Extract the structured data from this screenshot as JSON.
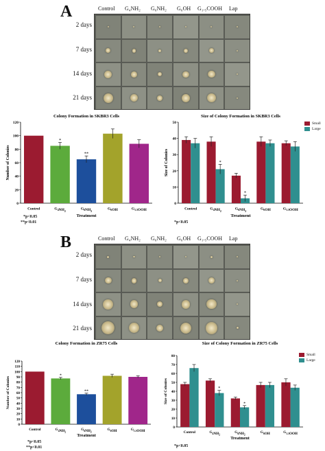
{
  "panels": [
    {
      "letter": "A",
      "columns": [
        "Control",
        "G₄NH₂",
        "G₆NH₂",
        "G₆OH",
        "G₁.₅COOH",
        "Lap"
      ],
      "rows": [
        "2 days",
        "7 days",
        "14 days",
        "21 days"
      ],
      "colony_chart": {
        "title": "Colony Formation in SKBR3 Cells",
        "xlabel": "Treatment",
        "ylabel": "Number of Colonies",
        "notes": [
          "*p<0.05",
          "**p<0.01"
        ]
      },
      "size_chart": {
        "title": "Size of Colony Formation in SKBR3 Cells",
        "xlabel": "Treatment",
        "ylabel": "Size of Colonies",
        "notes": [
          "*p<0.05"
        ]
      }
    },
    {
      "letter": "B",
      "columns": [
        "Control",
        "G₄NH₂",
        "G₆NH₂",
        "G₆OH",
        "G₁.₅COOH",
        "Lap"
      ],
      "rows": [
        "2 days",
        "7 days",
        "14 days",
        "21 days"
      ],
      "colony_chart": {
        "title": "Colony Formation in ZR75 Cells",
        "xlabel": "Treatment",
        "ylabel": "Number of Colonies",
        "notes": [
          "*p<0.05",
          "**p<0.01"
        ]
      },
      "size_chart": {
        "title": "Size of Colony Formation in ZR75 Cells",
        "xlabel": "Treatment",
        "ylabel": "Size of Colonies",
        "notes": [
          "*p<0.05"
        ]
      }
    }
  ],
  "chart_data": [
    {
      "id": "skbr3-count",
      "type": "bar",
      "title": "Colony Formation in SKBR3 Cells",
      "xlabel": "Treatment",
      "ylabel": "Number of Colonies",
      "categories": [
        "Control",
        "G4NH2",
        "G6NH2",
        "G6OH",
        "G1.5OOH"
      ],
      "values": [
        100,
        85,
        65,
        103,
        88
      ],
      "errors": [
        0,
        5,
        5,
        7,
        6
      ],
      "significance": [
        "",
        "*",
        "**",
        "",
        ""
      ],
      "colors": [
        "#9b1b30",
        "#5cab3c",
        "#1d4f9c",
        "#a3a32b",
        "#a0268a"
      ],
      "ylim": [
        0,
        120
      ],
      "yticks": [
        0,
        20,
        40,
        60,
        80,
        100,
        120
      ]
    },
    {
      "id": "skbr3-size",
      "type": "bar",
      "title": "Size of Colony Formation in SKBR3 Cells",
      "xlabel": "Treatment",
      "ylabel": "Size of Colonies",
      "categories": [
        "Control",
        "G4NH2",
        "G6NH2",
        "G6OH",
        "G1.5OOH"
      ],
      "series": [
        {
          "name": "Small",
          "color": "#9b1b30",
          "values": [
            39,
            38,
            17,
            38,
            37
          ],
          "errors": [
            2,
            3,
            1.5,
            3,
            1.5
          ],
          "significance": [
            "",
            "",
            "",
            "",
            ""
          ]
        },
        {
          "name": "Large",
          "color": "#2f8f8f",
          "values": [
            37,
            21,
            3,
            37,
            35
          ],
          "errors": [
            3,
            3,
            2,
            2,
            3
          ],
          "significance": [
            "",
            "*",
            "*",
            "",
            ""
          ]
        }
      ],
      "ylim": [
        0,
        50
      ],
      "yticks": [
        0,
        10,
        20,
        30,
        40,
        50
      ],
      "legend": "top-right"
    },
    {
      "id": "zr75-count",
      "type": "bar",
      "title": "Colony Formation in ZR75 Cells",
      "xlabel": "Treatment",
      "ylabel": "Number of Colonies",
      "categories": [
        "Control",
        "G4NH2",
        "G6NH2",
        "G6OH",
        "G1.5OOH"
      ],
      "values": [
        100,
        87,
        57,
        92,
        90
      ],
      "errors": [
        0,
        2,
        2,
        3,
        2
      ],
      "significance": [
        "",
        "*",
        "**",
        "",
        ""
      ],
      "colors": [
        "#9b1b30",
        "#5cab3c",
        "#1d4f9c",
        "#a3a32b",
        "#a0268a"
      ],
      "ylim": [
        0,
        120
      ],
      "yticks": [
        0,
        10,
        20,
        30,
        40,
        50,
        60,
        70,
        80,
        90,
        100,
        110,
        120
      ]
    },
    {
      "id": "zr75-size",
      "type": "bar",
      "title": "Size of Colony Formation in ZR75 Cells",
      "xlabel": "Treatment",
      "ylabel": "Size of Colonies",
      "categories": [
        "Control",
        "G4NH2",
        "G6NH2",
        "G6OH",
        "G1.5OOH"
      ],
      "series": [
        {
          "name": "Small",
          "color": "#9b1b30",
          "values": [
            48,
            52,
            32,
            47,
            50
          ],
          "errors": [
            2,
            2,
            1.5,
            3,
            4
          ],
          "significance": [
            "",
            "",
            "",
            "",
            ""
          ]
        },
        {
          "name": "Large",
          "color": "#2f8f8f",
          "values": [
            66,
            38,
            22,
            47,
            44
          ],
          "errors": [
            4,
            3,
            2,
            3,
            3
          ],
          "significance": [
            "",
            "*",
            "*",
            "",
            ""
          ]
        }
      ],
      "ylim": [
        0,
        80
      ],
      "yticks": [
        0,
        10,
        20,
        30,
        40,
        50,
        60,
        70,
        80
      ],
      "legend": "top-right"
    }
  ]
}
